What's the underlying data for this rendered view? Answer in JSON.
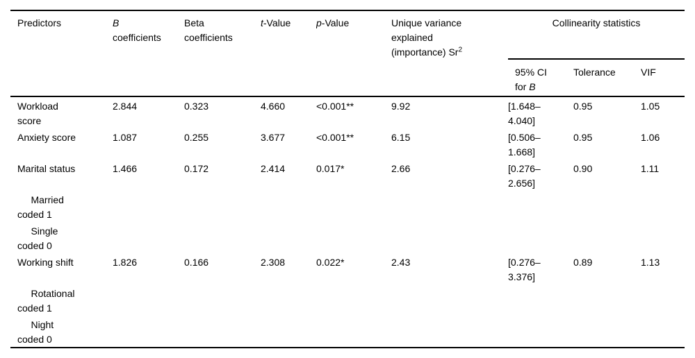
{
  "table": {
    "group_header": "Collinearity statistics",
    "columns": [
      {
        "id": "predictors",
        "header": [
          {
            "t": "Predictors"
          }
        ]
      },
      {
        "id": "b-coefficients",
        "header": [
          {
            "t": "B",
            "i": true
          },
          {
            "t": "\ncoefficients"
          }
        ]
      },
      {
        "id": "beta-coefficients",
        "header": [
          {
            "t": "Beta\ncoefficients"
          }
        ]
      },
      {
        "id": "t-value",
        "header": [
          {
            "t": "t",
            "i": true
          },
          {
            "t": "-Value"
          }
        ]
      },
      {
        "id": "p-value",
        "header": [
          {
            "t": "p",
            "i": true
          },
          {
            "t": "-Value"
          }
        ]
      },
      {
        "id": "unique-variance",
        "header": [
          {
            "t": "Unique variance\nexplained\n(importance) Sr"
          },
          {
            "t": "2",
            "sup": true
          }
        ]
      },
      {
        "id": "ci-95-for-b",
        "header": [
          {
            "t": "95% CI\nfor "
          },
          {
            "t": "B",
            "i": true
          }
        ]
      },
      {
        "id": "tolerance",
        "header": [
          {
            "t": "Tolerance"
          }
        ]
      },
      {
        "id": "vif",
        "header": [
          {
            "t": "VIF"
          }
        ]
      }
    ],
    "rows": [
      {
        "cells": [
          "Workload\nscore",
          "2.844",
          "0.323",
          "4.660",
          "<0.001**",
          "9.92",
          "[1.648–\n4.040]",
          "0.95",
          "1.05"
        ]
      },
      {
        "cells": [
          "Anxiety score",
          "1.087",
          "0.255",
          "3.677",
          "<0.001**",
          "6.15",
          "[0.506–\n1.668]",
          "0.95",
          "1.06"
        ]
      },
      {
        "cells": [
          "Marital status",
          "1.466",
          "0.172",
          "2.414",
          "0.017*",
          "2.66",
          "[0.276–\n2.656]",
          "0.90",
          "1.11"
        ]
      },
      {
        "cells": [
          "     Married\ncoded 1",
          "",
          "",
          "",
          "",
          "",
          "",
          "",
          ""
        ]
      },
      {
        "cells": [
          "     Single\ncoded 0",
          "",
          "",
          "",
          "",
          "",
          "",
          "",
          ""
        ]
      },
      {
        "cells": [
          "Working shift",
          "1.826",
          "0.166",
          "2.308",
          "0.022*",
          "2.43",
          "[0.276–\n3.376]",
          "0.89",
          "1.13"
        ]
      },
      {
        "cells": [
          "     Rotational\ncoded 1",
          "",
          "",
          "",
          "",
          "",
          "",
          "",
          ""
        ]
      },
      {
        "cells": [
          "     Night\ncoded 0",
          "",
          "",
          "",
          "",
          "",
          "",
          "",
          ""
        ]
      }
    ]
  }
}
